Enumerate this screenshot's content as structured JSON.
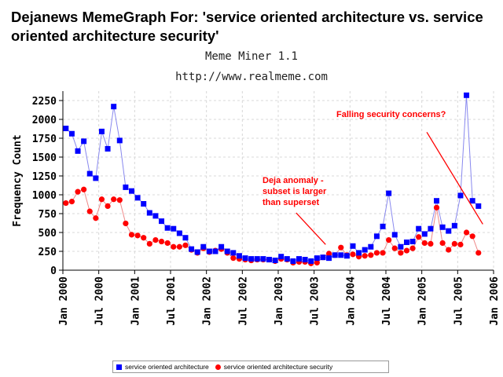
{
  "header": {
    "title": "Dejanews MemeGraph For: 'service oriented architecture vs. service oriented architecture security'",
    "subtitle": "Meme Miner 1.1",
    "url": "http://www.realmeme.com"
  },
  "colors": {
    "series1": "#0000ff",
    "series2": "#ff0000",
    "annotation": "#ff0000",
    "line1": "#8888ee",
    "line2": "#ee8888"
  },
  "chart_data": {
    "type": "line",
    "title": "",
    "xlabel": "",
    "ylabel": "Frequency Count",
    "ylim": [
      0,
      2375
    ],
    "xlim": [
      2000.0,
      2006.0
    ],
    "grid": true,
    "legend_position": "bottom",
    "y_ticks": [
      0,
      250,
      500,
      750,
      1000,
      1250,
      1500,
      1750,
      2000,
      2250
    ],
    "x_ticks": [
      {
        "value": 2000.0,
        "label": "Jan 2000"
      },
      {
        "value": 2000.5,
        "label": "Jul 2000"
      },
      {
        "value": 2001.0,
        "label": "Jan 2001"
      },
      {
        "value": 2001.5,
        "label": "Jul 2001"
      },
      {
        "value": 2002.0,
        "label": "Jan 2002"
      },
      {
        "value": 2002.5,
        "label": "Jul 2002"
      },
      {
        "value": 2003.0,
        "label": "Jan 2003"
      },
      {
        "value": 2003.5,
        "label": "Jul 2003"
      },
      {
        "value": 2004.0,
        "label": "Jan 2004"
      },
      {
        "value": 2004.5,
        "label": "Jul 2004"
      },
      {
        "value": 2005.0,
        "label": "Jan 2005"
      },
      {
        "value": 2005.5,
        "label": "Jul 2005"
      },
      {
        "value": 2006.0,
        "label": "Jan 2006"
      }
    ],
    "x_start": 2000.0417,
    "x_step": 0.0833,
    "series": [
      {
        "name": "service oriented architecture",
        "marker": "square",
        "values": [
          1880,
          1810,
          1580,
          1710,
          1280,
          1220,
          1840,
          1610,
          2170,
          1720,
          1100,
          1050,
          960,
          880,
          760,
          720,
          650,
          560,
          550,
          490,
          430,
          280,
          240,
          310,
          250,
          250,
          310,
          250,
          230,
          190,
          160,
          150,
          150,
          150,
          140,
          130,
          180,
          150,
          120,
          150,
          140,
          120,
          160,
          170,
          160,
          200,
          200,
          190,
          320,
          230,
          270,
          310,
          450,
          580,
          1020,
          470,
          310,
          370,
          380,
          550,
          480,
          550,
          920,
          570,
          520,
          590,
          990,
          2320,
          920,
          850
        ]
      },
      {
        "name": "service oriented architecture security",
        "marker": "circle",
        "values": [
          890,
          910,
          1040,
          1070,
          780,
          690,
          940,
          850,
          940,
          930,
          620,
          470,
          460,
          430,
          350,
          400,
          380,
          360,
          310,
          310,
          330,
          270,
          230,
          290,
          240,
          260,
          280,
          230,
          160,
          150,
          140,
          130,
          140,
          140,
          140,
          120,
          150,
          140,
          100,
          110,
          110,
          90,
          100,
          170,
          220,
          200,
          300,
          200,
          210,
          180,
          190,
          200,
          230,
          230,
          400,
          290,
          230,
          260,
          290,
          440,
          360,
          350,
          830,
          360,
          270,
          350,
          340,
          500,
          450,
          230
        ]
      }
    ],
    "annotations": [
      {
        "text": "Falling security concerns?",
        "arrow_from": [
          2005.07,
          1830
        ],
        "arrow_to": [
          2005.85,
          610
        ]
      },
      {
        "text": "Deja anomaly -",
        "arrow_from": [
          2003.25,
          760
        ],
        "arrow_to": [
          2003.66,
          340
        ]
      },
      {
        "text": "subset is larger",
        "arrow_from": null,
        "arrow_to": null
      },
      {
        "text": "than superset",
        "arrow_from": null,
        "arrow_to": null
      }
    ]
  }
}
